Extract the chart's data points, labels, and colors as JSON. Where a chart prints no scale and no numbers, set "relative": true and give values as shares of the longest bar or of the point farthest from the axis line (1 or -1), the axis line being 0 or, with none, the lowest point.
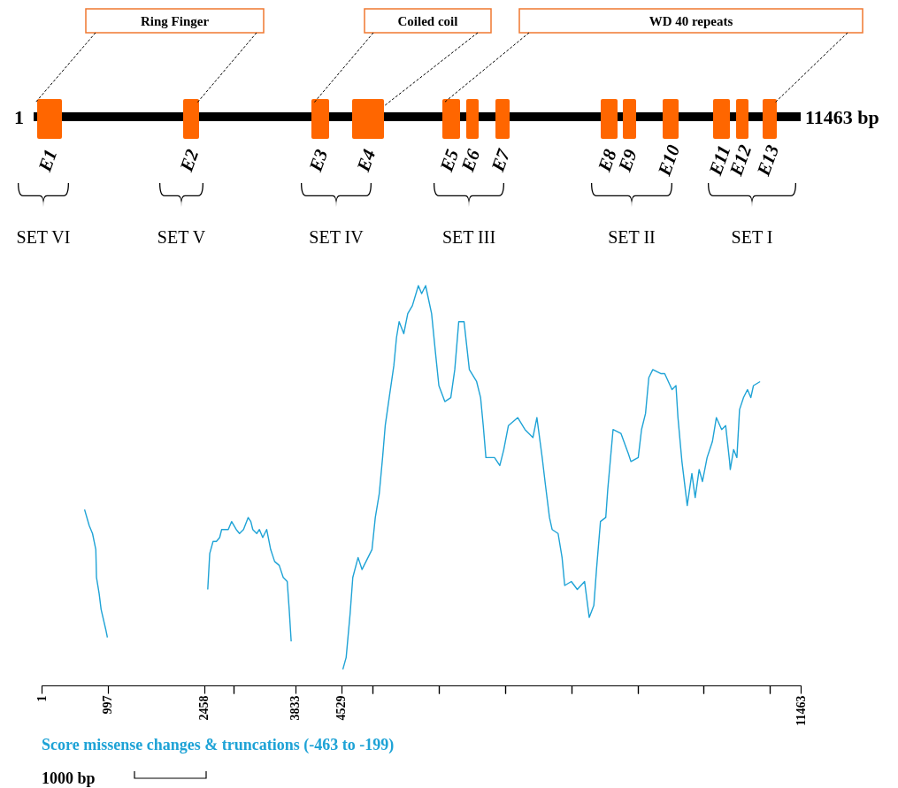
{
  "chart_data": {
    "type": "line",
    "relative": true,
    "xlim": [
      1,
      11463
    ],
    "xticks": [
      1,
      997,
      2458,
      {
        "value": 2900,
        "label": null
      },
      3833,
      4529,
      {
        "value": 5000,
        "label": null
      },
      {
        "value": 6000,
        "label": null
      },
      {
        "value": 7000,
        "label": null
      },
      {
        "value": 8000,
        "label": null
      },
      {
        "value": 9000,
        "label": null
      },
      {
        "value": 10000,
        "label": null
      },
      {
        "value": 11000,
        "label": null
      },
      11463
    ],
    "annotations": [
      "Ring Finger",
      "Coiled coil",
      "WD 40 repeats",
      "1",
      "11463 bp",
      "E1",
      "E2",
      "E3",
      "E4",
      "E5",
      "E6",
      "E7",
      "E8",
      "E9",
      "E10",
      "E11",
      "E12",
      "E13",
      "SET VI",
      "SET V",
      "SET IV",
      "SET III",
      "SET II",
      "SET I",
      "1000 bp"
    ],
    "series": [
      {
        "name": "Score missense changes & truncations (-463 to -199)",
        "color": "#1fa3d6",
        "x": [
          650,
          720,
          770,
          820,
          830,
          870,
          900,
          970,
          995,
          1700,
          2510,
          2540,
          2590,
          2640,
          2690,
          2720,
          2780,
          2820,
          2870,
          2940,
          2990,
          3050,
          3120,
          3160,
          3190,
          3250,
          3290,
          3340,
          3400,
          3460,
          3520,
          3590,
          3650,
          3710,
          3740,
          3770,
          4150,
          4550,
          4600,
          4660,
          4700,
          4780,
          4840,
          4990,
          5040,
          5100,
          5150,
          5190,
          5250,
          5320,
          5360,
          5400,
          5470,
          5530,
          5600,
          5690,
          5740,
          5800,
          5890,
          5950,
          6000,
          6090,
          6180,
          6240,
          6300,
          6380,
          6460,
          6570,
          6630,
          6670,
          6710,
          6840,
          6920,
          6980,
          7050,
          7190,
          7300,
          7420,
          7480,
          7560,
          7610,
          7670,
          7710,
          7800,
          7860,
          7900,
          8000,
          8090,
          8200,
          8270,
          8340,
          8380,
          8440,
          8520,
          8550,
          8630,
          8750,
          8860,
          8900,
          9010,
          9060,
          9120,
          9170,
          9230,
          9350,
          9410,
          9520,
          9580,
          9610,
          9670,
          9750,
          9820,
          9870,
          9930,
          9980,
          10050,
          10130,
          10190,
          10270,
          10330,
          10390,
          10400,
          10450,
          10500,
          10540,
          10600,
          10660,
          10710,
          10750,
          10850
        ],
        "values": [
          0.44,
          0.4,
          0.38,
          0.34,
          0.27,
          0.23,
          0.19,
          0.14,
          0.12,
          null,
          0.24,
          0.33,
          0.36,
          0.36,
          0.37,
          0.39,
          0.39,
          0.39,
          0.41,
          0.39,
          0.38,
          0.39,
          0.42,
          0.41,
          0.39,
          0.38,
          0.39,
          0.37,
          0.39,
          0.34,
          0.31,
          0.3,
          0.27,
          0.26,
          0.19,
          0.11,
          null,
          0.04,
          0.07,
          0.18,
          0.27,
          0.32,
          0.29,
          0.34,
          0.42,
          0.48,
          0.57,
          0.65,
          0.72,
          0.8,
          0.87,
          0.91,
          0.88,
          0.93,
          0.95,
          1,
          0.98,
          1,
          0.93,
          0.83,
          0.75,
          0.71,
          0.72,
          0.79,
          0.91,
          0.91,
          0.79,
          0.76,
          0.72,
          0.65,
          0.57,
          0.57,
          0.55,
          0.59,
          0.65,
          0.67,
          0.64,
          0.62,
          0.67,
          0.57,
          0.5,
          0.42,
          0.39,
          0.38,
          0.32,
          0.25,
          0.26,
          0.24,
          0.26,
          0.17,
          0.2,
          0.29,
          0.41,
          0.42,
          0.49,
          0.64,
          0.63,
          0.58,
          0.56,
          0.57,
          0.64,
          0.68,
          0.77,
          0.79,
          0.78,
          0.78,
          0.74,
          0.75,
          0.67,
          0.56,
          0.45,
          0.53,
          0.47,
          0.54,
          0.51,
          0.57,
          0.61,
          0.67,
          0.64,
          0.65,
          0.56,
          0.54,
          0.59,
          0.57,
          0.69,
          0.72,
          0.74,
          0.72,
          0.75,
          0.76
        ]
      }
    ]
  }
}
